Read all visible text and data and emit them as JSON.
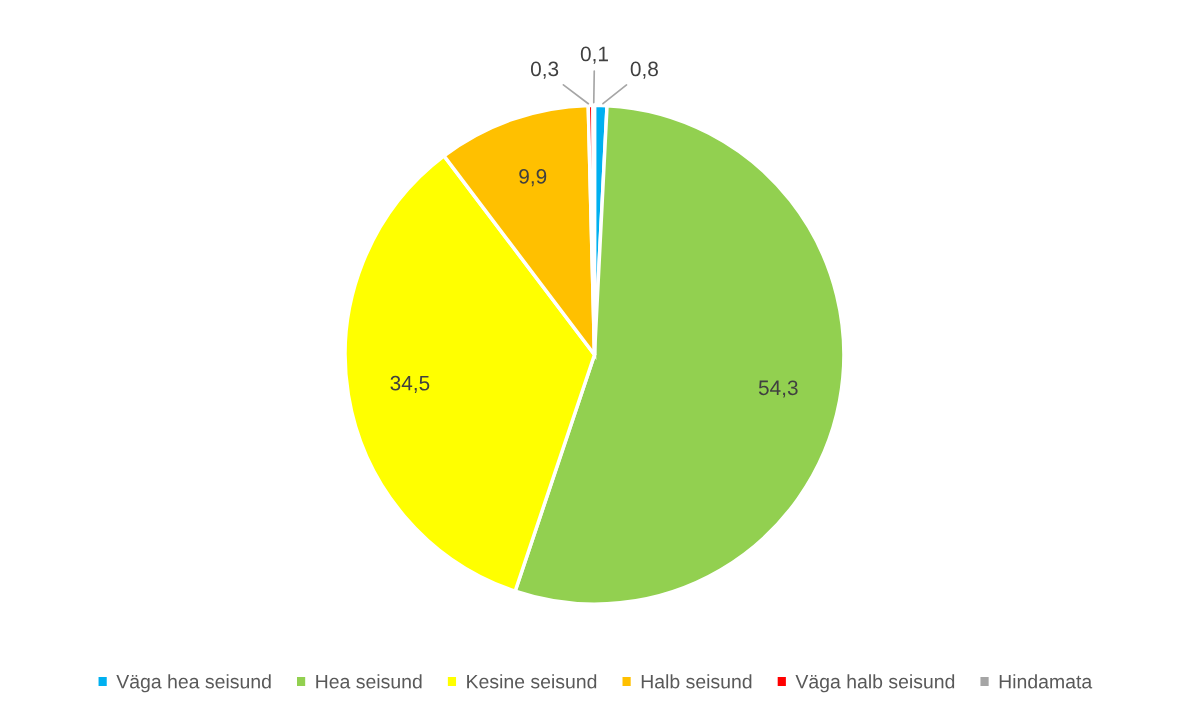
{
  "chart_data": {
    "type": "pie",
    "categories": [
      "Väga hea seisund",
      "Hea seisund",
      "Kesine seisund",
      "Halb seisund",
      "Väga halb seisund",
      "Hindamata"
    ],
    "values": [
      0.8,
      54.3,
      34.5,
      9.9,
      0.3,
      0.1
    ],
    "colors": [
      "#00b0f0",
      "#92d050",
      "#ffff00",
      "#ffc000",
      "#ff0000",
      "#a5a5a5"
    ],
    "value_labels": [
      "0,8",
      "54,3",
      "34,5",
      "9,9",
      "0,3",
      "0,1"
    ],
    "legend": "bottom"
  }
}
